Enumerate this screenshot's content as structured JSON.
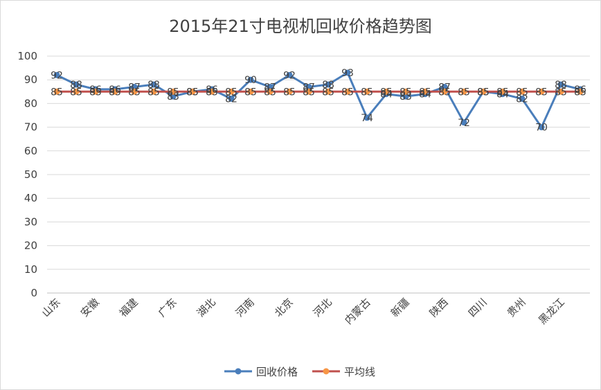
{
  "chart_data": {
    "type": "line",
    "title": "2015年21寸电视机回收价格趋势图",
    "ylim": [
      0,
      100
    ],
    "y_ticks": [
      0,
      10,
      20,
      30,
      40,
      50,
      60,
      70,
      80,
      90,
      100
    ],
    "grid": true,
    "legend_position": "bottom",
    "category_labels_shown": [
      "山东",
      "安徽",
      "福建",
      "广东",
      "湖北",
      "河南",
      "北京",
      "河北",
      "内蒙古",
      "新疆",
      "陕西",
      "四川",
      "贵州",
      "黑龙江"
    ],
    "series": [
      {
        "name": "回收价格",
        "color": "#4a7ebb",
        "values": [
          92,
          88,
          86,
          86,
          87,
          88,
          83,
          85,
          86,
          82,
          90,
          87,
          92,
          87,
          88,
          93,
          74,
          84,
          83,
          84,
          87,
          72,
          85,
          84,
          82,
          70,
          88,
          86
        ]
      },
      {
        "name": "平均线",
        "color": "#c0504d",
        "marker_color": "#f79646",
        "values": [
          85,
          85,
          85,
          85,
          85,
          85,
          85,
          85,
          85,
          85,
          85,
          85,
          85,
          85,
          85,
          85,
          85,
          85,
          85,
          85,
          85,
          85,
          85,
          85,
          85,
          85,
          85,
          85
        ]
      }
    ]
  }
}
